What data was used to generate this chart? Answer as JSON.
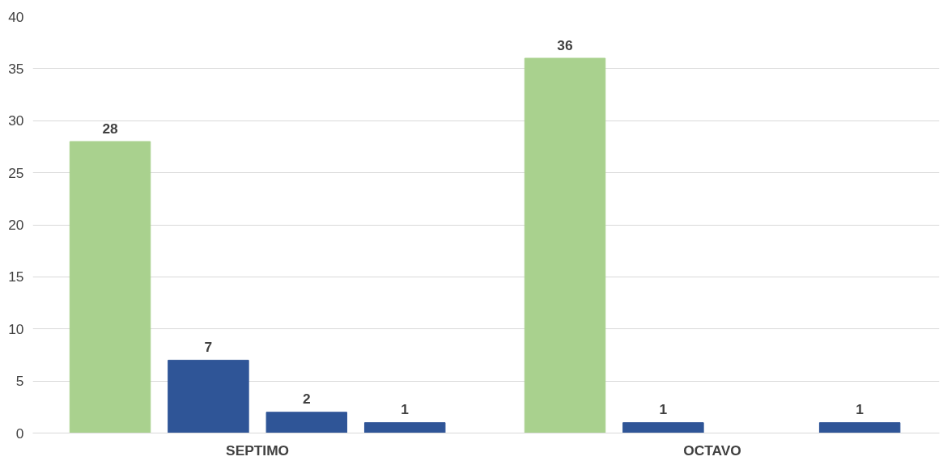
{
  "chart_data": {
    "type": "bar",
    "categories": [
      "SEPTIMO",
      "OCTAVO"
    ],
    "series": [
      {
        "color": "#a9d18e",
        "values": [
          28,
          36
        ]
      },
      {
        "color": "#2f5597",
        "values": [
          7,
          1
        ]
      },
      {
        "color": "#2f5597",
        "values": [
          2,
          null
        ]
      },
      {
        "color": "#2f5597",
        "values": [
          1,
          1
        ]
      }
    ],
    "ylim": [
      0,
      40
    ],
    "yticks": [
      0,
      5,
      10,
      15,
      20,
      25,
      30,
      35,
      40
    ],
    "grid": "y",
    "data_labels": true
  }
}
